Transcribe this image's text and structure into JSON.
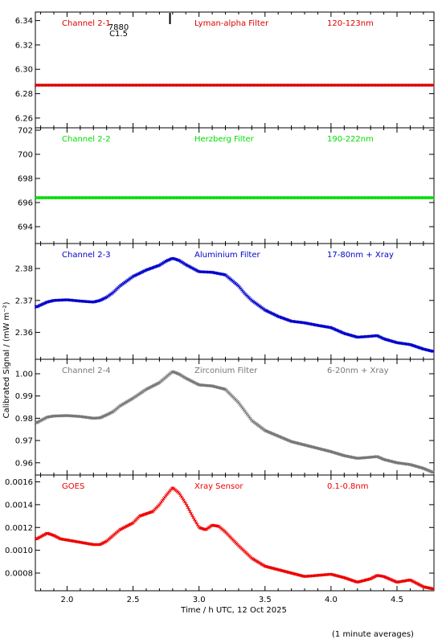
{
  "figure": {
    "xlabel": "Time / h UTC, 12 Oct 2025",
    "ylabel": "Calibrated Signal / (mW m⁻²)",
    "footer": "(1 minute averages)",
    "xlim": [
      1.76,
      4.78
    ],
    "xticks": [
      "2.0",
      "2.5",
      "3.0",
      "3.5",
      "4.0",
      "4.5"
    ],
    "event_marker": {
      "time": 2.78,
      "labels": [
        "7880",
        "C1.5"
      ]
    }
  },
  "chart_data": [
    {
      "type": "scatter",
      "channel": "Channel 2-1",
      "filter": "Lyman-alpha Filter",
      "band": "120-123nm",
      "color": "#dd0000",
      "ylim": [
        6.252,
        6.347
      ],
      "yticks": [
        "6.26",
        "6.28",
        "6.30",
        "6.32",
        "6.34"
      ],
      "x": [
        1.8,
        2.0,
        2.2,
        2.4,
        2.6,
        2.8,
        3.0,
        3.2,
        3.4,
        3.6,
        3.8,
        4.0,
        4.2,
        4.4,
        4.6,
        4.75
      ],
      "y": [
        6.287,
        6.287,
        6.287,
        6.287,
        6.287,
        6.287,
        6.287,
        6.287,
        6.287,
        6.287,
        6.287,
        6.287,
        6.287,
        6.287,
        6.287,
        6.287
      ]
    },
    {
      "type": "scatter",
      "channel": "Channel 2-2",
      "filter": "Herzberg Filter",
      "band": "190-222nm",
      "color": "#00dd00",
      "ylim": [
        692.6,
        702.2
      ],
      "yticks": [
        "694",
        "696",
        "698",
        "700",
        "702"
      ],
      "x": [
        1.8,
        2.0,
        2.2,
        2.4,
        2.6,
        2.8,
        3.0,
        3.2,
        3.4,
        3.6,
        3.8,
        4.0,
        4.2,
        4.4,
        4.6,
        4.75
      ],
      "y": [
        696.4,
        696.4,
        696.4,
        696.4,
        696.4,
        696.4,
        696.4,
        696.4,
        696.4,
        696.4,
        696.4,
        696.4,
        696.4,
        696.4,
        696.4,
        696.4
      ]
    },
    {
      "type": "scatter",
      "channel": "Channel 2-3",
      "filter": "Aluminium Filter",
      "band": "17-80nm + Xray",
      "color": "#0000cc",
      "ylim": [
        2.3516,
        2.3878
      ],
      "yticks": [
        "2.36",
        "2.37",
        "2.38"
      ],
      "x": [
        1.77,
        1.85,
        1.9,
        2.0,
        2.1,
        2.2,
        2.25,
        2.3,
        2.35,
        2.4,
        2.5,
        2.6,
        2.7,
        2.75,
        2.8,
        2.85,
        2.9,
        3.0,
        3.1,
        3.2,
        3.3,
        3.35,
        3.4,
        3.5,
        3.6,
        3.7,
        3.8,
        3.9,
        4.0,
        4.1,
        4.2,
        4.3,
        4.35,
        4.4,
        4.5,
        4.6,
        4.7,
        4.78
      ],
      "y": [
        2.368,
        2.3695,
        2.37,
        2.3702,
        2.3698,
        2.3695,
        2.37,
        2.371,
        2.3725,
        2.3745,
        2.3775,
        2.3795,
        2.381,
        2.3823,
        2.3832,
        2.3825,
        2.3812,
        2.379,
        2.3788,
        2.378,
        2.3745,
        2.372,
        2.37,
        2.367,
        2.365,
        2.3635,
        2.363,
        2.3622,
        2.3615,
        2.3597,
        2.3585,
        2.3588,
        2.359,
        2.358,
        2.3568,
        2.3562,
        2.3548,
        2.354
      ]
    },
    {
      "type": "scatter",
      "channel": "Channel 2-4",
      "filter": "Zirconium Filter",
      "band": "6-20nm + Xray",
      "color": "#777777",
      "ylim": [
        0.9545,
        1.0065
      ],
      "yticks": [
        "0.96",
        "0.97",
        "0.98",
        "0.99",
        "1.00"
      ],
      "x": [
        1.77,
        1.85,
        1.9,
        2.0,
        2.1,
        2.2,
        2.25,
        2.3,
        2.35,
        2.4,
        2.5,
        2.6,
        2.7,
        2.75,
        2.8,
        2.85,
        2.9,
        3.0,
        3.1,
        3.2,
        3.3,
        3.35,
        3.4,
        3.5,
        3.6,
        3.7,
        3.8,
        3.9,
        4.0,
        4.1,
        4.2,
        4.3,
        4.35,
        4.4,
        4.5,
        4.6,
        4.7,
        4.78
      ],
      "y": [
        0.978,
        0.9805,
        0.981,
        0.9812,
        0.9808,
        0.98,
        0.9802,
        0.9815,
        0.983,
        0.9855,
        0.989,
        0.993,
        0.996,
        0.9985,
        1.001,
        0.9998,
        0.998,
        0.995,
        0.9945,
        0.993,
        0.987,
        0.983,
        0.979,
        0.9745,
        0.972,
        0.9695,
        0.968,
        0.9665,
        0.965,
        0.9632,
        0.962,
        0.9625,
        0.9628,
        0.9615,
        0.96,
        0.9592,
        0.9575,
        0.9555
      ]
    },
    {
      "type": "scatter",
      "channel": "GOES",
      "filter": "Xray Sensor",
      "band": "0.1-0.8nm",
      "color": "#ee0000",
      "ylim": [
        0.000645,
        0.00166
      ],
      "yticks": [
        "0.0008",
        "0.0010",
        "0.0012",
        "0.0014",
        "0.0016"
      ],
      "x": [
        1.77,
        1.85,
        1.9,
        1.95,
        2.0,
        2.1,
        2.2,
        2.25,
        2.3,
        2.35,
        2.4,
        2.45,
        2.5,
        2.55,
        2.6,
        2.65,
        2.7,
        2.75,
        2.8,
        2.85,
        2.9,
        2.95,
        3.0,
        3.05,
        3.1,
        3.15,
        3.2,
        3.25,
        3.3,
        3.4,
        3.5,
        3.6,
        3.7,
        3.8,
        3.9,
        4.0,
        4.1,
        4.2,
        4.3,
        4.35,
        4.4,
        4.5,
        4.6,
        4.7,
        4.78
      ],
      "y": [
        0.0011,
        0.00115,
        0.00113,
        0.0011,
        0.00109,
        0.00107,
        0.00105,
        0.00105,
        0.00108,
        0.00113,
        0.00118,
        0.00121,
        0.00124,
        0.0013,
        0.00132,
        0.00134,
        0.0014,
        0.00148,
        0.00155,
        0.0015,
        0.00141,
        0.0013,
        0.0012,
        0.00118,
        0.00122,
        0.00121,
        0.00116,
        0.0011,
        0.00104,
        0.00093,
        0.00086,
        0.00083,
        0.0008,
        0.00077,
        0.00078,
        0.00079,
        0.00076,
        0.00072,
        0.00075,
        0.00078,
        0.00077,
        0.00072,
        0.00074,
        0.00068,
        0.00066
      ]
    }
  ]
}
